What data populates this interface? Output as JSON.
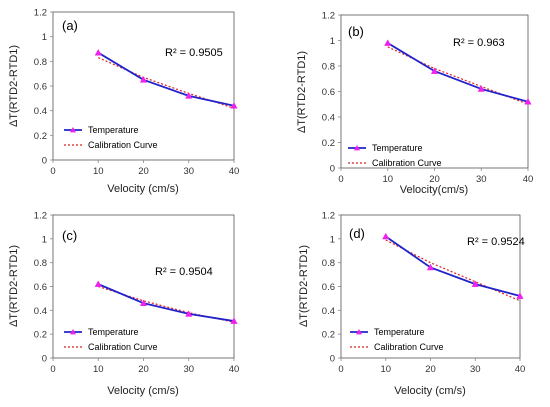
{
  "colors": {
    "temperature_line": "#2222cc",
    "temperature_marker": "#ee22ee",
    "calibration_line": "#dd2222",
    "axis": "#888888",
    "frame": "#555555"
  },
  "chart_data": [
    {
      "type": "line",
      "panel_label": "(a)",
      "r2_label": "R² = 0.9505",
      "xlabel": "Velocity (cm/s)",
      "ylabel": "ΔT(RTD2-RTD1)",
      "xlim": [
        0,
        40
      ],
      "ylim": [
        0,
        1.2
      ],
      "x_ticks": [
        "0",
        "10",
        "20",
        "30",
        "40"
      ],
      "y_ticks": [
        "0",
        "0.2",
        "0.4",
        "0.6",
        "0.8",
        "1",
        "1.2"
      ],
      "x": [
        10,
        20,
        30,
        40
      ],
      "series": [
        {
          "name": "Temperature",
          "style": "solid-triangle-markers",
          "values": [
            0.87,
            0.65,
            0.52,
            0.44
          ]
        },
        {
          "name": "Calibration Curve",
          "style": "dotted",
          "values": [
            0.83,
            0.67,
            0.54,
            0.42
          ]
        }
      ],
      "legend_position": "bottom-left"
    },
    {
      "type": "line",
      "panel_label": "(b)",
      "r2_label": "R² = 0.963",
      "xlabel": "Velocity(cm/s)",
      "ylabel": "ΔT(RTD2-RTD1)",
      "xlim": [
        0,
        40
      ],
      "ylim": [
        0,
        1.2
      ],
      "x_ticks": [
        "0",
        "10",
        "20",
        "30",
        "40"
      ],
      "y_ticks": [
        "0",
        "0.2",
        "0.4",
        "0.6",
        "0.8",
        "1",
        "1.2"
      ],
      "x": [
        10,
        20,
        30,
        40
      ],
      "series": [
        {
          "name": "Temperature",
          "style": "solid-triangle-markers",
          "values": [
            0.98,
            0.76,
            0.62,
            0.52
          ]
        },
        {
          "name": "Calibration Curve",
          "style": "dotted",
          "values": [
            0.95,
            0.78,
            0.64,
            0.5
          ]
        }
      ],
      "legend_position": "bottom-left"
    },
    {
      "type": "line",
      "panel_label": "(c)",
      "r2_label": "R² = 0.9504",
      "xlabel": "Velocity (cm/s)",
      "ylabel": "ΔT(RTD2-RTD1)",
      "xlim": [
        0,
        40
      ],
      "ylim": [
        0,
        1.2
      ],
      "x_ticks": [
        "0",
        "10",
        "20",
        "30",
        "40"
      ],
      "y_ticks": [
        "0",
        "0.2",
        "0.4",
        "0.6",
        "0.8",
        "1",
        "1.2"
      ],
      "x": [
        10,
        20,
        30,
        40
      ],
      "series": [
        {
          "name": "Temperature",
          "style": "solid-triangle-markers",
          "values": [
            0.62,
            0.46,
            0.37,
            0.31
          ]
        },
        {
          "name": "Calibration Curve",
          "style": "dotted",
          "values": [
            0.6,
            0.48,
            0.38,
            0.3
          ]
        }
      ],
      "legend_position": "bottom-left"
    },
    {
      "type": "line",
      "panel_label": "(d)",
      "r2_label": "R² = 0.9524",
      "xlabel": "Velocity (cm/s)",
      "ylabel": "ΔT(RTD2-RTD1)",
      "xlim": [
        0,
        40
      ],
      "ylim": [
        0,
        1.2
      ],
      "x_ticks": [
        "0",
        "10",
        "20",
        "30",
        "40"
      ],
      "y_ticks": [
        "0",
        "0.2",
        "0.4",
        "0.6",
        "0.8",
        "1",
        "1.2"
      ],
      "x": [
        10,
        20,
        30,
        40
      ],
      "series": [
        {
          "name": "Temperature",
          "style": "solid-triangle-markers",
          "values": [
            1.02,
            0.76,
            0.62,
            0.52
          ]
        },
        {
          "name": "Calibration Curve",
          "style": "dotted",
          "values": [
            0.99,
            0.8,
            0.64,
            0.48
          ]
        }
      ],
      "legend_position": "bottom-left"
    }
  ]
}
